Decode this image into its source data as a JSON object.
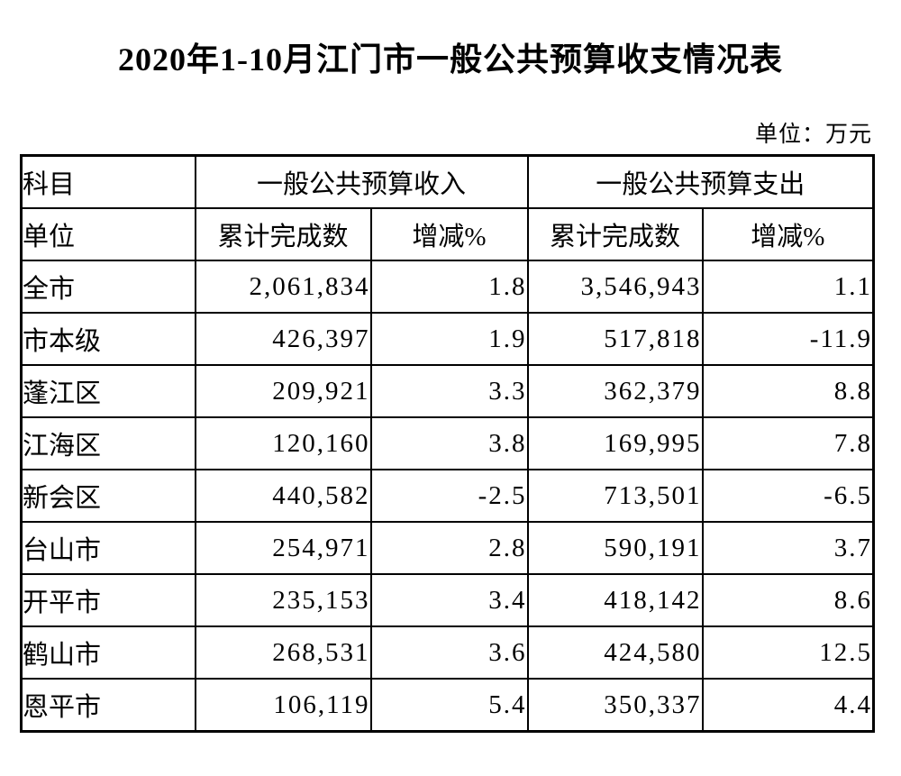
{
  "page": {
    "title": "2020年1-10月江门市一般公共预算收支情况表",
    "unit_note": "单位：万元"
  },
  "colors": {
    "text": "#000000",
    "background": "#ffffff",
    "border": "#000000"
  },
  "chart_data": {
    "type": "table",
    "title": "2020年1-10月江门市一般公共预算收支情况表",
    "unit": "万元",
    "header_row1": {
      "subject": "科目",
      "income_group": "一般公共预算收入",
      "expense_group": "一般公共预算支出"
    },
    "header_row2": {
      "unit_label": "单位",
      "income_total": "累计完成数",
      "income_change": "增减%",
      "expense_total": "累计完成数",
      "expense_change": "增减%"
    },
    "rows": [
      {
        "name": "全市",
        "income_total": "2,061,834",
        "income_change": "1.8",
        "expense_total": "3,546,943",
        "expense_change": "1.1"
      },
      {
        "name": "市本级",
        "income_total": "426,397",
        "income_change": "1.9",
        "expense_total": "517,818",
        "expense_change": "-11.9"
      },
      {
        "name": "蓬江区",
        "income_total": "209,921",
        "income_change": "3.3",
        "expense_total": "362,379",
        "expense_change": "8.8"
      },
      {
        "name": "江海区",
        "income_total": "120,160",
        "income_change": "3.8",
        "expense_total": "169,995",
        "expense_change": "7.8"
      },
      {
        "name": "新会区",
        "income_total": "440,582",
        "income_change": "-2.5",
        "expense_total": "713,501",
        "expense_change": "-6.5"
      },
      {
        "name": "台山市",
        "income_total": "254,971",
        "income_change": "2.8",
        "expense_total": "590,191",
        "expense_change": "3.7"
      },
      {
        "name": "开平市",
        "income_total": "235,153",
        "income_change": "3.4",
        "expense_total": "418,142",
        "expense_change": "8.6"
      },
      {
        "name": "鹤山市",
        "income_total": "268,531",
        "income_change": "3.6",
        "expense_total": "424,580",
        "expense_change": "12.5"
      },
      {
        "name": "恩平市",
        "income_total": "106,119",
        "income_change": "5.4",
        "expense_total": "350,337",
        "expense_change": "4.4"
      }
    ]
  }
}
